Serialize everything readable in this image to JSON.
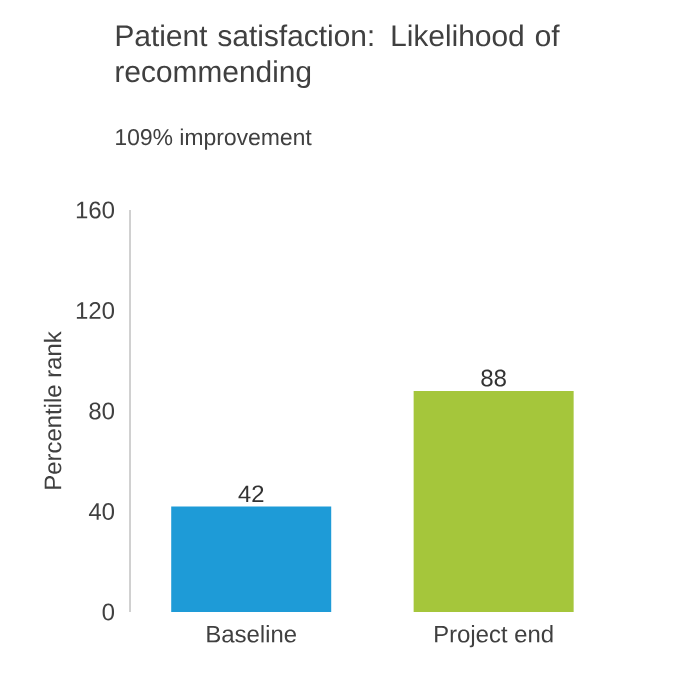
{
  "chart_data": {
    "type": "bar",
    "title": "Patient satisfaction: Likelihood of recommending",
    "subtitle": "109% improvement",
    "ylabel": "Percentile rank",
    "categories": [
      "Baseline",
      "Project end"
    ],
    "values": [
      42,
      88
    ],
    "colors": [
      "#1e9bd7",
      "#a5c63b"
    ],
    "ylim": [
      0,
      160
    ],
    "yticks": [
      0,
      40,
      80,
      120,
      160
    ],
    "data_labels": true
  }
}
